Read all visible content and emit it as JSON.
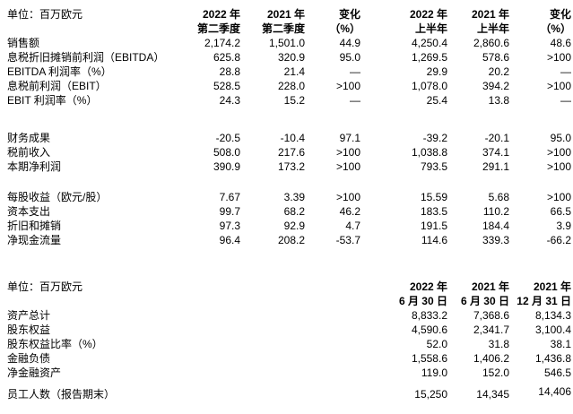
{
  "income_table": {
    "unit_label": "单位：百万欧元",
    "col_headers": [
      [
        "2022 年",
        "第二季度"
      ],
      [
        "2021 年",
        "第二季度"
      ],
      [
        "变化",
        "（%）"
      ],
      [
        "2022 年",
        "上半年"
      ],
      [
        "2021 年",
        "上半年"
      ],
      [
        "变化",
        "（%）"
      ]
    ],
    "rows": [
      {
        "label": "销售额",
        "values": [
          "2,174.2",
          "1,501.0",
          "44.9",
          "4,250.4",
          "2,860.6",
          "48.6"
        ]
      },
      {
        "label": "息税折旧摊销前利润（EBITDA）",
        "values": [
          "625.8",
          "320.9",
          "95.0",
          "1,269.5",
          "578.6",
          ">100"
        ]
      },
      {
        "label": "EBITDA 利润率（%）",
        "values": [
          "28.8",
          "21.4",
          "—",
          "29.9",
          "20.2",
          "—"
        ]
      },
      {
        "label": "息税前利润（EBIT）",
        "values": [
          "528.5",
          "228.0",
          ">100",
          "1,078.0",
          "394.2",
          ">100"
        ]
      },
      {
        "label": "EBIT 利润率（%）",
        "values": [
          "24.3",
          "15.2",
          "—",
          "25.4",
          "13.8",
          "—"
        ],
        "gap_after": true
      },
      {
        "label": "财务成果",
        "values": [
          "-20.5",
          "-10.4",
          "97.1",
          "-39.2",
          "-20.1",
          "95.0"
        ]
      },
      {
        "label": "税前收入",
        "values": [
          "508.0",
          "217.6",
          ">100",
          "1,038.8",
          "374.1",
          ">100"
        ]
      },
      {
        "label": "本期净利润",
        "values": [
          "390.9",
          "173.2",
          ">100",
          "793.5",
          "291.1",
          ">100"
        ],
        "gap_after": true
      },
      {
        "label": "每股收益（欧元/股）",
        "values": [
          "7.67",
          "3.39",
          ">100",
          "15.59",
          "5.68",
          ">100"
        ]
      },
      {
        "label": "资本支出",
        "values": [
          "99.7",
          "68.2",
          "46.2",
          "183.5",
          "110.2",
          "66.5"
        ]
      },
      {
        "label": "折旧和摊销",
        "values": [
          "97.3",
          "92.9",
          "4.7",
          "191.5",
          "184.4",
          "3.9"
        ]
      },
      {
        "label": "净现金流量",
        "values": [
          "96.4",
          "208.2",
          "-53.7",
          "114.6",
          "339.3",
          "-66.2"
        ]
      }
    ]
  },
  "balance_table": {
    "unit_label": "单位：百万欧元",
    "col_headers": [
      [
        "2022 年",
        "6 月 30 日"
      ],
      [
        "2021 年",
        "6 月 30 日"
      ],
      [
        "2021 年",
        "12 月 31 日"
      ]
    ],
    "rows": [
      {
        "label": "资产总计",
        "values": [
          "8,833.2",
          "7,368.6",
          "8,134.3"
        ]
      },
      {
        "label": "股东权益",
        "values": [
          "4,590.6",
          "2,341.7",
          "3,100.4"
        ]
      },
      {
        "label": "股东权益比率（%）",
        "values": [
          "52.0",
          "31.8",
          "38.1"
        ]
      },
      {
        "label": "金融负债",
        "values": [
          "1,558.6",
          "1,406.2",
          "1,436.8"
        ]
      },
      {
        "label": "净金融资产",
        "values": [
          "119.0",
          "152.0",
          "546.5"
        ],
        "gap_after": true
      },
      {
        "label": "员工人数（报告期末）",
        "values": [
          "15,250",
          "14,345",
          "14,406"
        ]
      }
    ]
  }
}
